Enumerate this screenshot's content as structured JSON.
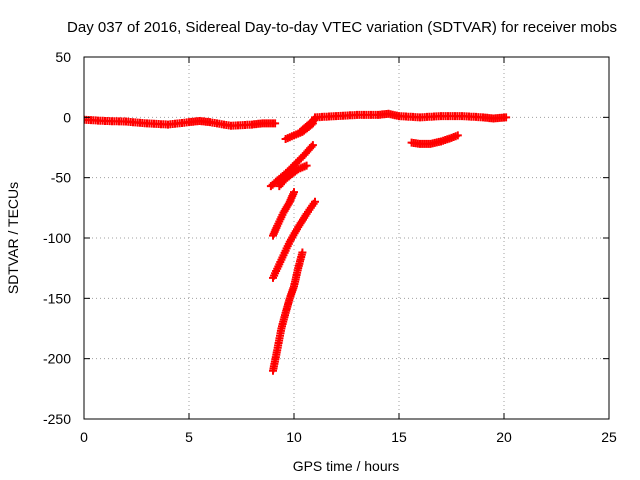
{
  "chart_data": {
    "type": "scatter",
    "title": "Day 037 of 2016, Sidereal Day-to-day VTEC variation (SDTVAR) for receiver mobs",
    "xlabel": "GPS time / hours",
    "ylabel": "SDTVAR / TECUs",
    "xlim": [
      0,
      25
    ],
    "ylim": [
      -250,
      50
    ],
    "xticks": [
      "0",
      "5",
      "10",
      "15",
      "20",
      "25"
    ],
    "yticks": [
      "50",
      "0",
      "-50",
      "-100",
      "-150",
      "-200",
      "-250"
    ],
    "grid": true,
    "legend": "none",
    "marker": "plus",
    "color": "#ff0000",
    "series": [
      {
        "name": "trace-1",
        "x": [
          0,
          1,
          2,
          3,
          4,
          5,
          5.5,
          6,
          7,
          8,
          8.5,
          9.1
        ],
        "y": [
          -2,
          -3,
          -3.5,
          -5,
          -6,
          -4,
          -3,
          -4,
          -7,
          -6,
          -5,
          -5
        ]
      },
      {
        "name": "trace-2",
        "x": [
          9.6,
          10,
          10.4,
          10.7,
          10.9
        ],
        "y": [
          -18,
          -15,
          -12,
          -8,
          -5
        ]
      },
      {
        "name": "trace-3",
        "x": [
          10.3,
          10.5,
          10.7,
          10.9,
          11.0
        ],
        "y": [
          -12,
          -9,
          -6,
          -3,
          -1
        ]
      },
      {
        "name": "trace-4",
        "x": [
          8.9,
          9.3,
          9.7,
          10.1,
          10.5,
          10.9
        ],
        "y": [
          -57,
          -51,
          -45,
          -38,
          -31,
          -23
        ]
      },
      {
        "name": "trace-5",
        "x": [
          9.3,
          9.6,
          9.9,
          10.2,
          10.6
        ],
        "y": [
          -57,
          -51,
          -47,
          -43,
          -40
        ]
      },
      {
        "name": "trace-6",
        "x": [
          9.0,
          9.2,
          9.5,
          9.8,
          10.0
        ],
        "y": [
          -98,
          -90,
          -79,
          -70,
          -62
        ]
      },
      {
        "name": "trace-7",
        "x": [
          9.0,
          9.4,
          9.8,
          10.2,
          10.6,
          11.0
        ],
        "y": [
          -133,
          -118,
          -103,
          -91,
          -80,
          -70
        ]
      },
      {
        "name": "trace-8",
        "x": [
          9.0,
          9.2,
          9.4,
          9.6,
          9.8,
          10.0,
          10.2,
          10.4
        ],
        "y": [
          -210,
          -193,
          -175,
          -162,
          -150,
          -140,
          -125,
          -112
        ]
      },
      {
        "name": "trace-9",
        "x": [
          11,
          12,
          13,
          14,
          14.5,
          15,
          16,
          17,
          18,
          19,
          19.5,
          20.1
        ],
        "y": [
          0,
          1,
          2,
          2,
          3,
          1,
          0,
          1,
          1,
          0,
          -1,
          0
        ]
      },
      {
        "name": "trace-10",
        "x": [
          15.6,
          16,
          16.5,
          17,
          17.5,
          17.8
        ],
        "y": [
          -21,
          -22,
          -22,
          -20,
          -17,
          -15
        ]
      }
    ]
  }
}
